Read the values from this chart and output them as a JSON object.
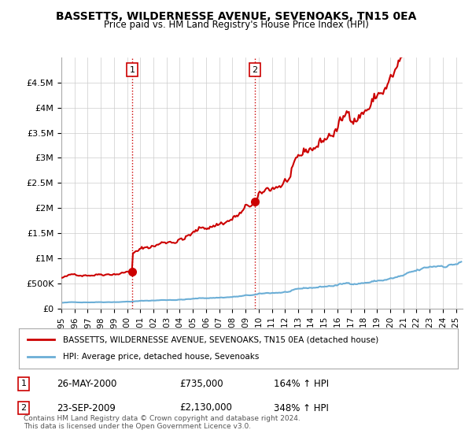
{
  "title": "BASSETTS, WILDERNESSE AVENUE, SEVENOAKS, TN15 0EA",
  "subtitle": "Price paid vs. HM Land Registry's House Price Index (HPI)",
  "ylim": [
    0,
    5000000
  ],
  "yticks": [
    0,
    500000,
    1000000,
    1500000,
    2000000,
    2500000,
    3000000,
    3500000,
    4000000,
    4500000
  ],
  "ytick_labels": [
    "£0",
    "£500K",
    "£1M",
    "£1.5M",
    "£2M",
    "£2.5M",
    "£3M",
    "£3.5M",
    "£4M",
    "£4.5M"
  ],
  "xlim_start": 1995.0,
  "xlim_end": 2025.5,
  "sale1_x": 2000.39,
  "sale1_y": 735000,
  "sale2_x": 2009.72,
  "sale2_y": 2130000,
  "sale1_label": "1",
  "sale2_label": "2",
  "hpi_color": "#6baed6",
  "price_color": "#cc0000",
  "vline_color": "#cc0000",
  "vline_style": ":",
  "legend_label_price": "BASSETTS, WILDERNESSE AVENUE, SEVENOAKS, TN15 0EA (detached house)",
  "legend_label_hpi": "HPI: Average price, detached house, Sevenoaks",
  "table_row1": [
    "1",
    "26-MAY-2000",
    "£735,000",
    "164% ↑ HPI"
  ],
  "table_row2": [
    "2",
    "23-SEP-2009",
    "£2,130,000",
    "348% ↑ HPI"
  ],
  "footer": "Contains HM Land Registry data © Crown copyright and database right 2024.\nThis data is licensed under the Open Government Licence v3.0.",
  "bg_color": "#ffffff",
  "grid_color": "#cccccc"
}
